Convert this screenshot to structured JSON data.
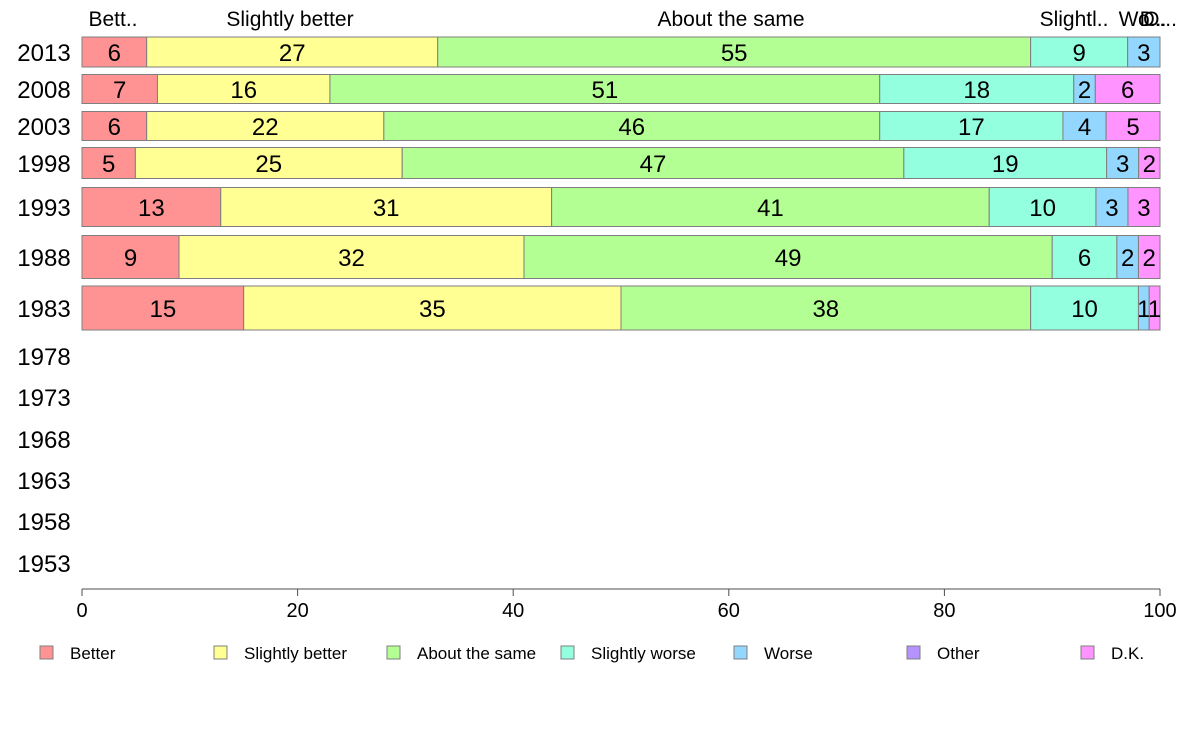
{
  "chart_data": {
    "type": "bar",
    "orientation": "horizontal",
    "stacked": true,
    "title": "",
    "xlabel": "",
    "ylabel": "",
    "xlim": [
      0,
      100
    ],
    "x_ticks": [
      0,
      20,
      40,
      60,
      80,
      100
    ],
    "categories": [
      "2013",
      "2008",
      "2003",
      "1998",
      "1993",
      "1988",
      "1983",
      "1978",
      "1973",
      "1968",
      "1963",
      "1958",
      "1953"
    ],
    "series": [
      {
        "name": "Better",
        "color": "#ff9393",
        "values": [
          6,
          7,
          6,
          5,
          13,
          9,
          15,
          null,
          null,
          null,
          null,
          null,
          null
        ]
      },
      {
        "name": "Slightly better",
        "color": "#ffff93",
        "values": [
          27,
          16,
          22,
          25,
          31,
          32,
          35,
          null,
          null,
          null,
          null,
          null,
          null
        ]
      },
      {
        "name": "About the same",
        "color": "#b4ff93",
        "values": [
          55,
          51,
          46,
          47,
          41,
          49,
          38,
          null,
          null,
          null,
          null,
          null,
          null
        ]
      },
      {
        "name": "Slightly worse",
        "color": "#93ffde",
        "values": [
          9,
          18,
          17,
          19,
          10,
          6,
          10,
          null,
          null,
          null,
          null,
          null,
          null
        ]
      },
      {
        "name": "Worse",
        "color": "#93d7ff",
        "values": [
          3,
          2,
          4,
          3,
          3,
          2,
          1,
          null,
          null,
          null,
          null,
          null,
          null
        ]
      },
      {
        "name": "Other",
        "color": "#b493ff",
        "values": [
          0,
          0,
          0,
          0,
          0,
          0,
          0,
          null,
          null,
          null,
          null,
          null,
          null
        ]
      },
      {
        "name": "D.K.",
        "color": "#ff93ff",
        "values": [
          0,
          6,
          5,
          2,
          3,
          2,
          1,
          null,
          null,
          null,
          null,
          null,
          null
        ]
      }
    ],
    "top_labels": [
      "Bett..",
      "Slightly better",
      "About the same",
      "Slightl..",
      "Wo..",
      "D..",
      "O..."
    ],
    "legend": {
      "placement": "bottom"
    },
    "grid": false
  }
}
